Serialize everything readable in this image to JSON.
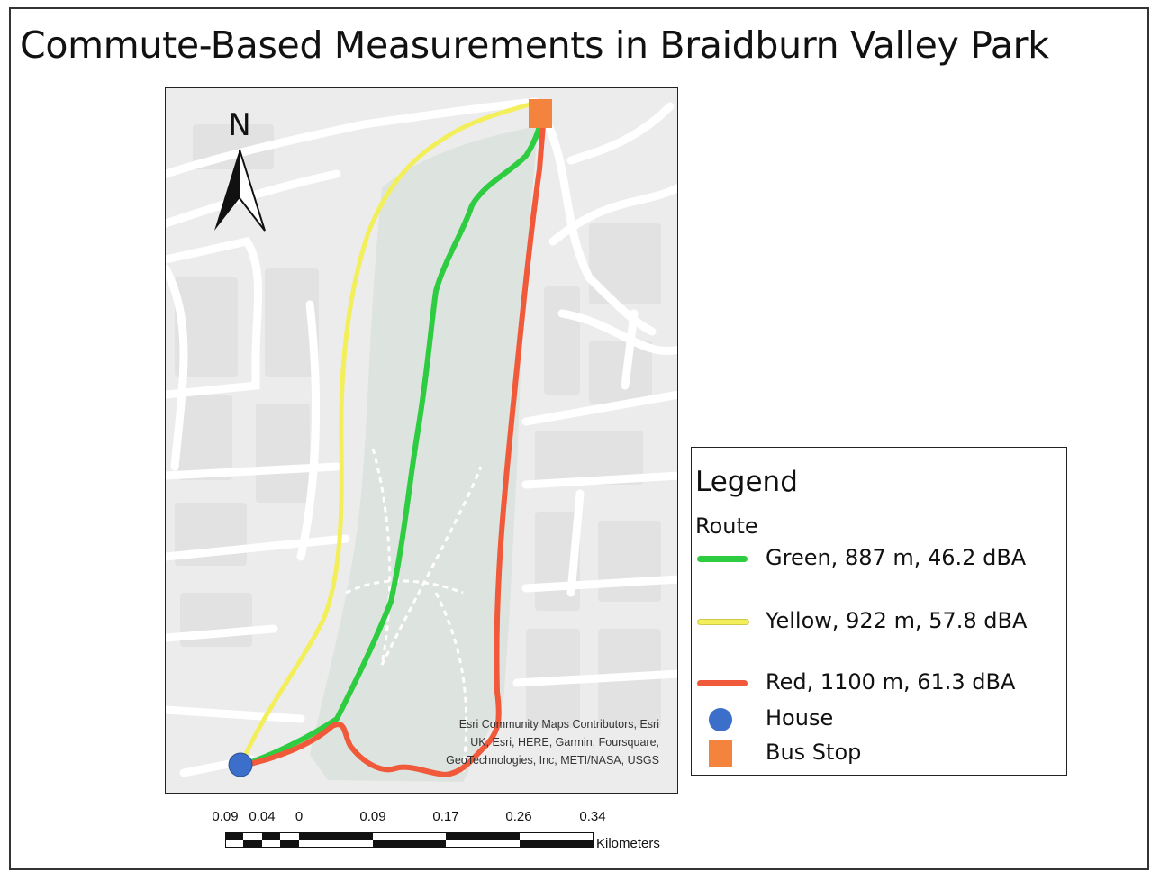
{
  "title": "Commute-Based Measurements in Braidburn Valley Park",
  "north_arrow": {
    "label": "N",
    "icon": "north-arrow-icon"
  },
  "attribution": [
    "Esri Community Maps Contributors, Esri",
    "UK, Esri, HERE, Garmin, Foursquare,",
    "GeoTechnologies, Inc, METI/NASA, USGS"
  ],
  "legend": {
    "title": "Legend",
    "group_title": "Route",
    "items": [
      {
        "label": "Green, 887 m, 46.2 dBA",
        "symbol": "line",
        "color": "#2ecc40"
      },
      {
        "label": "Yellow, 922 m, 57.8 dBA",
        "symbol": "line",
        "color": "#f3ef5a"
      },
      {
        "label": "Red, 1100 m, 61.3 dBA",
        "symbol": "line",
        "color": "#f05a3a"
      },
      {
        "label": "House",
        "symbol": "circle",
        "color": "#3b6fc9"
      },
      {
        "label": "Bus Stop",
        "symbol": "square",
        "color": "#f4843d"
      }
    ]
  },
  "scale_bar": {
    "ticks": [
      "0.09",
      "0.04",
      "0",
      "0.09",
      "0.17",
      "0.26",
      "0.34"
    ],
    "unit": "Kilometers"
  },
  "colors": {
    "green_route": "#2ecc40",
    "yellow_route": "#f3ef5a",
    "red_route": "#f05a3a",
    "house": "#3b6fc9",
    "bus_stop": "#f4843d",
    "park": "#dde3df",
    "background": "#ececec"
  }
}
